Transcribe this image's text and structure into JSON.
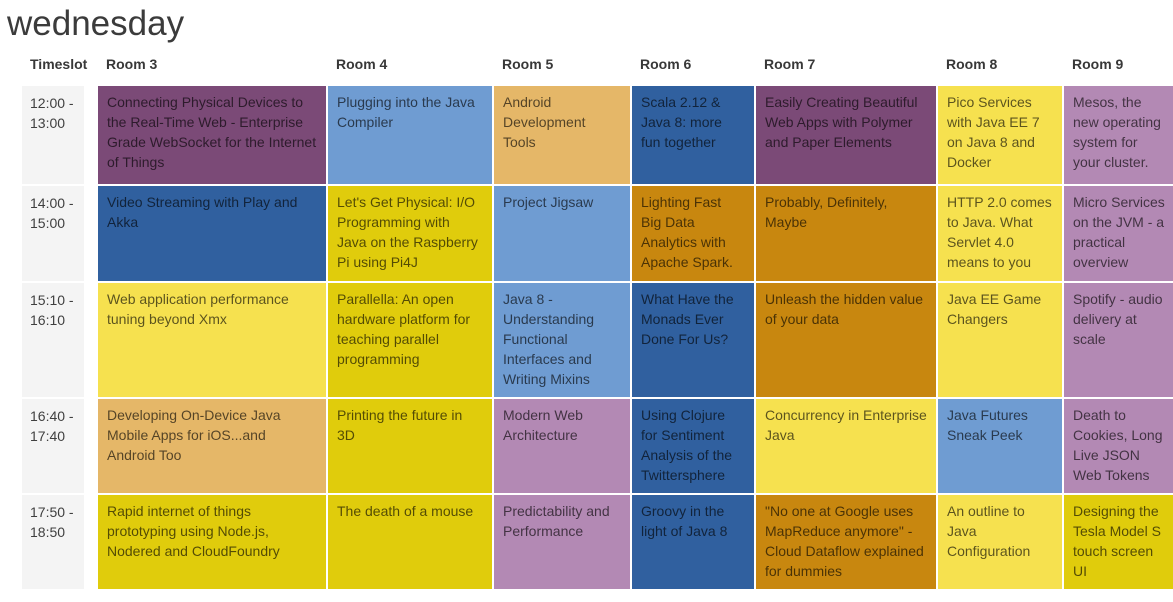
{
  "title": "wednesday",
  "colors": {
    "purple": "#7b4a77",
    "lightblue": "#6f9cd2",
    "tan": "#e5b768",
    "darkblue": "#30609f",
    "amber": "#c8870f",
    "yellow": "#f6e14f",
    "gold": "#e0cc0c",
    "mauve": "#b389b4",
    "timeslot_bg": "#f4f4f4"
  },
  "table": {
    "columns": [
      "Timeslot",
      "Room 3",
      "Room 4",
      "Room 5",
      "Room 6",
      "Room 7",
      "Room 8",
      "Room 9"
    ],
    "rows": [
      {
        "timeslot": "12:00 - 13:00",
        "sessions": [
          {
            "title": "Connecting Physical Devices to the Real-Time Web - Enterprise Grade WebSocket for the Internet of Things",
            "color": "purple"
          },
          {
            "title": "Plugging into the Java Compiler",
            "color": "lightblue"
          },
          {
            "title": "Android Development Tools",
            "color": "tan"
          },
          {
            "title": "Scala 2.12 & Java 8: more fun together",
            "color": "darkblue"
          },
          {
            "title": "Easily Creating Beautiful Web Apps with Polymer and Paper Elements",
            "color": "purple"
          },
          {
            "title": "Pico Services with Java EE 7 on Java 8 and Docker",
            "color": "yellow"
          },
          {
            "title": "Mesos, the new operating system for your cluster.",
            "color": "mauve"
          }
        ]
      },
      {
        "timeslot": "14:00 - 15:00",
        "sessions": [
          {
            "title": "Video Streaming with Play and Akka",
            "color": "darkblue"
          },
          {
            "title": "Let's Get Physical: I/O Programming with Java on the Raspberry Pi using Pi4J",
            "color": "gold"
          },
          {
            "title": "Project Jigsaw",
            "color": "lightblue"
          },
          {
            "title": "Lighting Fast Big Data Analytics with Apache Spark.",
            "color": "amber"
          },
          {
            "title": "Probably, Definitely, Maybe",
            "color": "amber"
          },
          {
            "title": "HTTP 2.0 comes to Java. What Servlet 4.0 means to you",
            "color": "yellow"
          },
          {
            "title": "Micro Services on the JVM - a practical overview",
            "color": "mauve"
          }
        ]
      },
      {
        "timeslot": "15:10 - 16:10",
        "sessions": [
          {
            "title": "Web application performance tuning beyond Xmx",
            "color": "yellow"
          },
          {
            "title": "Parallella: An open hardware platform for teaching parallel programming",
            "color": "gold"
          },
          {
            "title": "Java 8 - Understanding Functional Interfaces and Writing Mixins",
            "color": "lightblue"
          },
          {
            "title": "What Have the Monads Ever Done For Us?",
            "color": "darkblue"
          },
          {
            "title": "Unleash the hidden value of your data",
            "color": "amber"
          },
          {
            "title": "Java EE Game Changers",
            "color": "yellow"
          },
          {
            "title": "Spotify - audio delivery at scale",
            "color": "mauve"
          }
        ]
      },
      {
        "timeslot": "16:40 - 17:40",
        "sessions": [
          {
            "title": "Developing On-Device Java Mobile Apps for iOS...and Android Too",
            "color": "tan"
          },
          {
            "title": "Printing the future in 3D",
            "color": "gold"
          },
          {
            "title": "Modern Web Architecture",
            "color": "mauve"
          },
          {
            "title": "Using Clojure for Sentiment Analysis of the Twittersphere",
            "color": "darkblue"
          },
          {
            "title": "Concurrency in Enterprise Java",
            "color": "yellow"
          },
          {
            "title": "Java Futures Sneak Peek",
            "color": "lightblue"
          },
          {
            "title": "Death to Cookies, Long Live JSON Web Tokens",
            "color": "mauve"
          }
        ]
      },
      {
        "timeslot": "17:50 - 18:50",
        "sessions": [
          {
            "title": "Rapid internet of things prototyping using Node.js, Nodered and CloudFoundry",
            "color": "gold"
          },
          {
            "title": "The death of a mouse",
            "color": "gold"
          },
          {
            "title": "Predictability and Performance",
            "color": "mauve"
          },
          {
            "title": "Groovy in the light of Java 8",
            "color": "darkblue"
          },
          {
            "title": "\"No one at Google uses MapReduce anymore\" - Cloud Dataflow explained for dummies",
            "color": "amber"
          },
          {
            "title": "An outline to Java Configuration",
            "color": "yellow"
          },
          {
            "title": "Designing the Tesla Model S touch screen UI",
            "color": "gold"
          }
        ]
      }
    ]
  }
}
